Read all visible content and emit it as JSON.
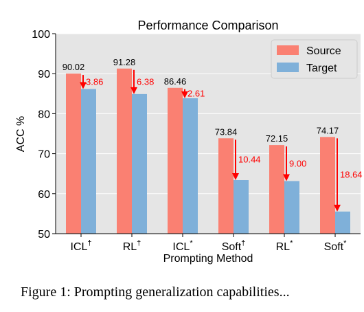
{
  "chart_data": {
    "type": "bar",
    "title": "Performance Comparison",
    "xlabel": "Prompting Method",
    "ylabel": "ACC %",
    "ylim": [
      50,
      100
    ],
    "yticks": [
      "50",
      "60",
      "70",
      "80",
      "90",
      "100"
    ],
    "categories": [
      {
        "base": "ICL",
        "sup": "†"
      },
      {
        "base": "RL",
        "sup": "†"
      },
      {
        "base": "ICL",
        "sup": "*"
      },
      {
        "base": "Soft",
        "sup": "†"
      },
      {
        "base": "RL",
        "sup": "*"
      },
      {
        "base": "Soft",
        "sup": "*"
      }
    ],
    "series": [
      {
        "name": "Source",
        "color": "#fa8072",
        "values": [
          90.02,
          91.28,
          86.46,
          73.84,
          72.15,
          74.17
        ]
      },
      {
        "name": "Target",
        "color": "#7fb0d9",
        "values": [
          86.16,
          84.9,
          83.85,
          63.4,
          63.15,
          55.53
        ]
      }
    ],
    "value_labels": [
      "90.02",
      "91.28",
      "86.46",
      "73.84",
      "72.15",
      "74.17"
    ],
    "drop_labels": [
      "3.86",
      "6.38",
      "2.61",
      "10.44",
      "9.00",
      "18.64"
    ],
    "drop_color": "#ff0000",
    "legend_position": "top-right",
    "grid": true,
    "background": "#e5e5e5"
  },
  "caption": "Figure 1: Prompting generalization capabilities..."
}
